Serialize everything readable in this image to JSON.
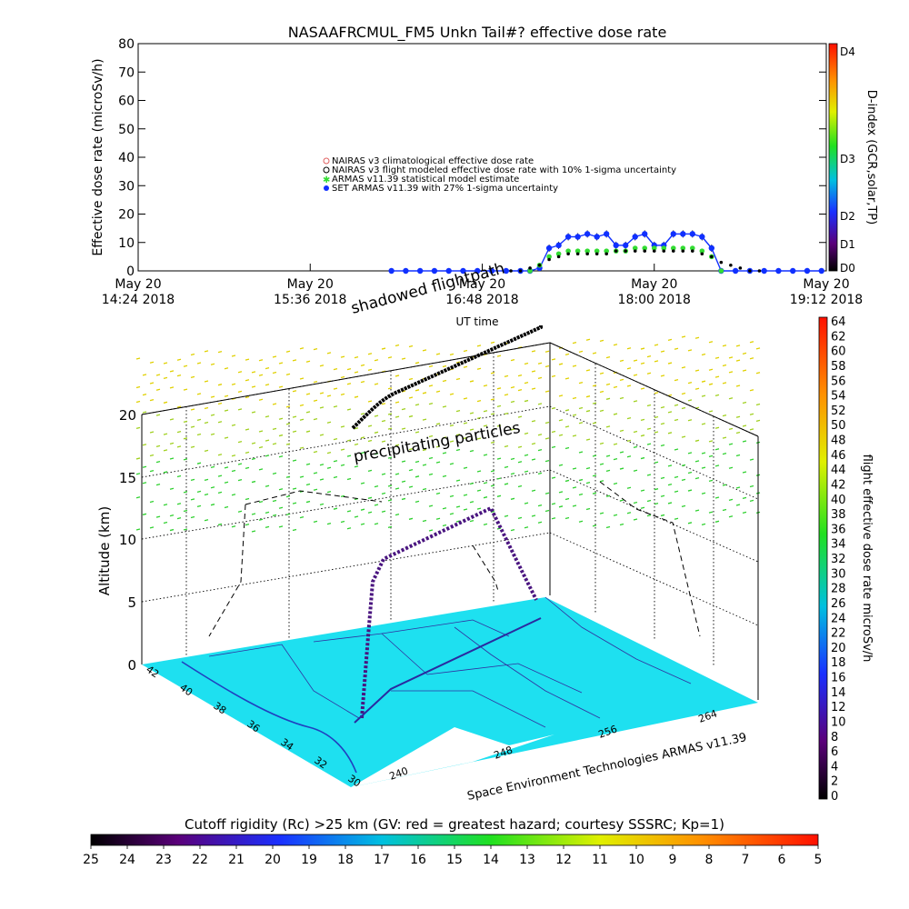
{
  "title": "NASAAFRCMUL_FM5 Unkn Tail#? effective dose rate",
  "colors": {
    "black": "#000000",
    "nairas": "#e06060",
    "armas_green": "#33dd33",
    "set_armas_blue": "#1030ff",
    "map_fill": "#1ee0f0",
    "state_lines": "#2050d0"
  },
  "chart_data": [
    {
      "type": "scatter",
      "title": "NASAAFRCMUL_FM5 Unkn Tail#? effective dose rate",
      "xlabel": "UT time",
      "ylabel": "Effective dose rate (microSv/h)",
      "ylim": [
        0,
        80
      ],
      "yticks": [
        "0",
        "10",
        "20",
        "30",
        "40",
        "50",
        "60",
        "70",
        "80"
      ],
      "xticks": [
        {
          "date": "May 20",
          "time": "14:24 2018",
          "x": 0.0
        },
        {
          "date": "May 20",
          "time": "15:36 2018",
          "x": 72
        },
        {
          "date": "May 20",
          "time": "16:48 2018",
          "x": 144
        },
        {
          "date": "May 20",
          "time": "18:00 2018",
          "x": 216
        },
        {
          "date": "May 20",
          "time": "19:12 2018",
          "x": 288
        }
      ],
      "legend": [
        {
          "label": "NAIRAS v3 climatological effective dose rate",
          "marker": "circle-x"
        },
        {
          "label": "NAIRAS v3 flight modeled effective dose rate with 10% 1-sigma uncertainty",
          "marker": "circle-x"
        },
        {
          "label": "ARMAS v11.39 statistical model estimate",
          "marker": "star"
        },
        {
          "label": "SET ARMAS v11.39 with 27% 1-sigma uncertainty",
          "marker": "dot"
        }
      ],
      "series": [
        {
          "name": "SET ARMAS v11.39 with 27% 1-sigma uncertainty",
          "x": [
            106,
            112,
            118,
            124,
            130,
            136,
            142,
            148,
            154,
            160,
            164,
            168,
            172,
            176,
            180,
            184,
            188,
            192,
            196,
            200,
            204,
            208,
            212,
            216,
            220,
            224,
            228,
            232,
            236,
            240,
            244,
            250,
            256,
            262,
            268,
            274,
            280,
            286
          ],
          "y": [
            0,
            0,
            0,
            0,
            0,
            0,
            0,
            0,
            0,
            0,
            0,
            1,
            8,
            9,
            12,
            12,
            13,
            12,
            13,
            9,
            9,
            12,
            13,
            9,
            9,
            13,
            13,
            13,
            12,
            8,
            0,
            0,
            0,
            0,
            0,
            0,
            0,
            0
          ]
        },
        {
          "name": "ARMAS v11.39 statistical model estimate",
          "x": [
            164,
            168,
            172,
            176,
            180,
            184,
            188,
            192,
            196,
            200,
            204,
            208,
            212,
            216,
            220,
            224,
            228,
            232,
            236,
            240,
            244
          ],
          "y": [
            0,
            2,
            5,
            6,
            7,
            7,
            7,
            7,
            7,
            7,
            7,
            8,
            8,
            8,
            8,
            8,
            8,
            8,
            7,
            5,
            0
          ]
        },
        {
          "name": "NAIRAS v3 flight modeled effective dose rate with 10% 1-sigma uncertainty",
          "x": [
            156,
            160,
            164,
            168,
            172,
            176,
            180,
            184,
            188,
            192,
            196,
            200,
            204,
            208,
            212,
            216,
            220,
            224,
            228,
            232,
            236,
            240,
            244,
            248,
            252,
            256,
            260
          ],
          "y": [
            0,
            0,
            1,
            2,
            4,
            5,
            6,
            6,
            6,
            6,
            6,
            7,
            7,
            7,
            7,
            7,
            7,
            7,
            7,
            7,
            6,
            5,
            3,
            2,
            1,
            0,
            0
          ]
        }
      ],
      "colorbar": {
        "label": "D-index (GCR,solar,TP)",
        "ticks": [
          "D0",
          "D1",
          "D2",
          "D3",
          "D4"
        ]
      }
    },
    {
      "type": "scatter",
      "title": "",
      "zlabel": "Altitude (km)",
      "zlim": [
        0,
        20
      ],
      "zticks": [
        "0",
        "5",
        "10",
        "15",
        "20"
      ],
      "lat_ticks": [
        "42",
        "40",
        "38",
        "36",
        "34",
        "32",
        "30"
      ],
      "lon_ticks": [
        "240",
        "248",
        "256",
        "264"
      ],
      "annotations": [
        "shadowed flightpath",
        "precipitating particles"
      ],
      "credit": "Space Environment Technologies ARMAS v11.39",
      "colorbar": {
        "label": "flight effective dose rate microSv/h",
        "ticks": [
          "0",
          "2",
          "4",
          "6",
          "8",
          "10",
          "12",
          "14",
          "16",
          "18",
          "20",
          "22",
          "24",
          "26",
          "28",
          "30",
          "32",
          "34",
          "36",
          "38",
          "40",
          "42",
          "44",
          "46",
          "48",
          "50",
          "52",
          "54",
          "56",
          "58",
          "60",
          "62",
          "64"
        ]
      }
    },
    {
      "type": "heatmap",
      "title": "Cutoff rigidity (Rc) >25 km (GV: red = greatest hazard; courtesy SSSRC; Kp=1)",
      "ticks": [
        "25",
        "24",
        "23",
        "22",
        "21",
        "20",
        "19",
        "18",
        "17",
        "16",
        "15",
        "14",
        "13",
        "12",
        "11",
        "10",
        "9",
        "8",
        "7",
        "6",
        "5"
      ]
    }
  ]
}
